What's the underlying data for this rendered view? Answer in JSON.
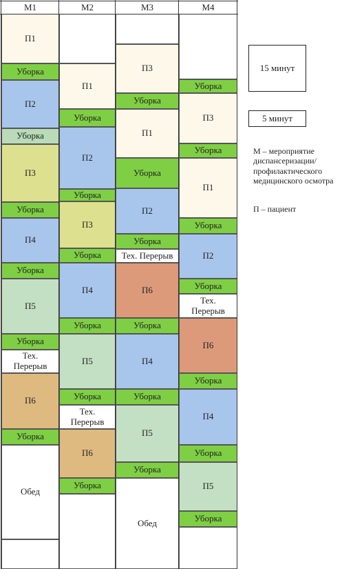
{
  "columns": [
    {
      "label": "М1",
      "blocks": [
        {
          "text": "П1",
          "kind": "p1",
          "from": 20,
          "to": 92
        },
        {
          "text": "Уборка",
          "kind": "clean",
          "from": 92,
          "to": 116
        },
        {
          "text": "П2",
          "kind": "p2",
          "from": 116,
          "to": 186
        },
        {
          "text": "Уборка",
          "kind": "cleanpale",
          "from": 186,
          "to": 209
        },
        {
          "text": "П3",
          "kind": "p3",
          "from": 209,
          "to": 293
        },
        {
          "text": "Уборка",
          "kind": "clean",
          "from": 293,
          "to": 316
        },
        {
          "text": "П4",
          "kind": "p4",
          "from": 316,
          "to": 381
        },
        {
          "text": "Уборка",
          "kind": "clean",
          "from": 381,
          "to": 404
        },
        {
          "text": "П5",
          "kind": "p5",
          "from": 404,
          "to": 484
        },
        {
          "text": "Уборка",
          "kind": "clean",
          "from": 484,
          "to": 507
        },
        {
          "text": "Тех.\nПерерыв",
          "kind": "break",
          "from": 507,
          "to": 541
        },
        {
          "text": "П6",
          "kind": "p6",
          "from": 541,
          "to": 622
        },
        {
          "text": "Уборка",
          "kind": "clean",
          "from": 622,
          "to": 645
        },
        {
          "text": "Обед",
          "kind": "lunch",
          "from": 645,
          "to": 782
        },
        {
          "text": "",
          "kind": "empty",
          "from": 782,
          "to": 825
        }
      ]
    },
    {
      "label": "М2",
      "blocks": [
        {
          "text": "",
          "kind": "empty",
          "from": 20,
          "to": 92
        },
        {
          "text": "П1",
          "kind": "p1",
          "from": 92,
          "to": 158
        },
        {
          "text": "Уборка",
          "kind": "clean",
          "from": 158,
          "to": 184
        },
        {
          "text": "П2",
          "kind": "p2",
          "from": 184,
          "to": 274
        },
        {
          "text": "Уборка",
          "kind": "clean",
          "from": 274,
          "to": 292
        },
        {
          "text": "П3",
          "kind": "p3",
          "from": 292,
          "to": 360
        },
        {
          "text": "Уборка",
          "kind": "clean",
          "from": 360,
          "to": 381
        },
        {
          "text": "П4",
          "kind": "p4",
          "from": 381,
          "to": 461
        },
        {
          "text": "Уборка",
          "kind": "clean",
          "from": 461,
          "to": 484
        },
        {
          "text": "П5",
          "kind": "p5",
          "from": 484,
          "to": 564
        },
        {
          "text": "Уборка",
          "kind": "clean",
          "from": 564,
          "to": 587
        },
        {
          "text": "Тех.\nПерерыв",
          "kind": "break",
          "from": 587,
          "to": 622
        },
        {
          "text": "П6",
          "kind": "p6",
          "from": 622,
          "to": 693
        },
        {
          "text": "Уборка",
          "kind": "clean",
          "from": 693,
          "to": 716
        },
        {
          "text": "",
          "kind": "empty",
          "from": 716,
          "to": 825
        }
      ]
    },
    {
      "label": "М3",
      "blocks": [
        {
          "text": "",
          "kind": "empty",
          "from": 20,
          "to": 64
        },
        {
          "text": "П3",
          "kind": "p1",
          "from": 64,
          "to": 135
        },
        {
          "text": "Уборка",
          "kind": "clean",
          "from": 135,
          "to": 158
        },
        {
          "text": "П1",
          "kind": "p1",
          "from": 158,
          "to": 229
        },
        {
          "text": "Уборка",
          "kind": "clean",
          "from": 229,
          "to": 273
        },
        {
          "text": "П2",
          "kind": "p2",
          "from": 273,
          "to": 339
        },
        {
          "text": "Уборка",
          "kind": "clean",
          "from": 339,
          "to": 361
        },
        {
          "text": "Тех. Перерыв",
          "kind": "break",
          "from": 361,
          "to": 381
        },
        {
          "text": "П6",
          "kind": "p6orange",
          "from": 381,
          "to": 461
        },
        {
          "text": "Уборка",
          "kind": "clean",
          "from": 461,
          "to": 484
        },
        {
          "text": "П4",
          "kind": "p4",
          "from": 484,
          "to": 564
        },
        {
          "text": "Уборка",
          "kind": "clean",
          "from": 564,
          "to": 587
        },
        {
          "text": "П5",
          "kind": "p5",
          "from": 587,
          "to": 670
        },
        {
          "text": "Уборка",
          "kind": "clean",
          "from": 670,
          "to": 693
        },
        {
          "text": "Обед",
          "kind": "lunch",
          "from": 693,
          "to": 825
        }
      ]
    },
    {
      "label": "М4",
      "blocks": [
        {
          "text": "",
          "kind": "empty",
          "from": 20,
          "to": 115
        },
        {
          "text": "Уборка",
          "kind": "clean",
          "from": 115,
          "to": 135
        },
        {
          "text": "П3",
          "kind": "p1",
          "from": 135,
          "to": 208
        },
        {
          "text": "Уборка",
          "kind": "clean",
          "from": 208,
          "to": 229
        },
        {
          "text": "П1",
          "kind": "p1",
          "from": 229,
          "to": 316
        },
        {
          "text": "Уборка",
          "kind": "clean",
          "from": 316,
          "to": 339
        },
        {
          "text": "П2",
          "kind": "p2",
          "from": 339,
          "to": 404
        },
        {
          "text": "Уборка",
          "kind": "clean",
          "from": 404,
          "to": 426
        },
        {
          "text": "Тех.\nПерерыв",
          "kind": "break",
          "from": 426,
          "to": 461
        },
        {
          "text": "П6",
          "kind": "p6orange",
          "from": 461,
          "to": 541
        },
        {
          "text": "Уборка",
          "kind": "clean",
          "from": 541,
          "to": 564
        },
        {
          "text": "П4",
          "kind": "p4",
          "from": 564,
          "to": 645
        },
        {
          "text": "Уборка",
          "kind": "clean",
          "from": 645,
          "to": 670
        },
        {
          "text": "П5",
          "kind": "p5",
          "from": 670,
          "to": 741
        },
        {
          "text": "Уборка",
          "kind": "clean",
          "from": 741,
          "to": 764
        },
        {
          "text": "",
          "kind": "empty",
          "from": 764,
          "to": 825
        }
      ]
    }
  ],
  "colors": {
    "p1": "#fdf8ea",
    "clean": "#7fcf44",
    "cleanpale": "#b9dbb8",
    "p2": "#a8c6ec",
    "p3": "#dde08e",
    "p4": "#a8c6ec",
    "p5": "#c4e0c4",
    "p6": "#dfba80",
    "p6orange": "#dd9a7a",
    "break": "#ffffff",
    "lunch": "#ffffff",
    "empty": "#ffffff"
  },
  "legend": {
    "box15_label": "15 минут",
    "box5_label": "5 минут",
    "m_text": "М – мероприятие диспансеризации/ профилактического медицинского осмотра",
    "p_text": "П – пациент"
  }
}
